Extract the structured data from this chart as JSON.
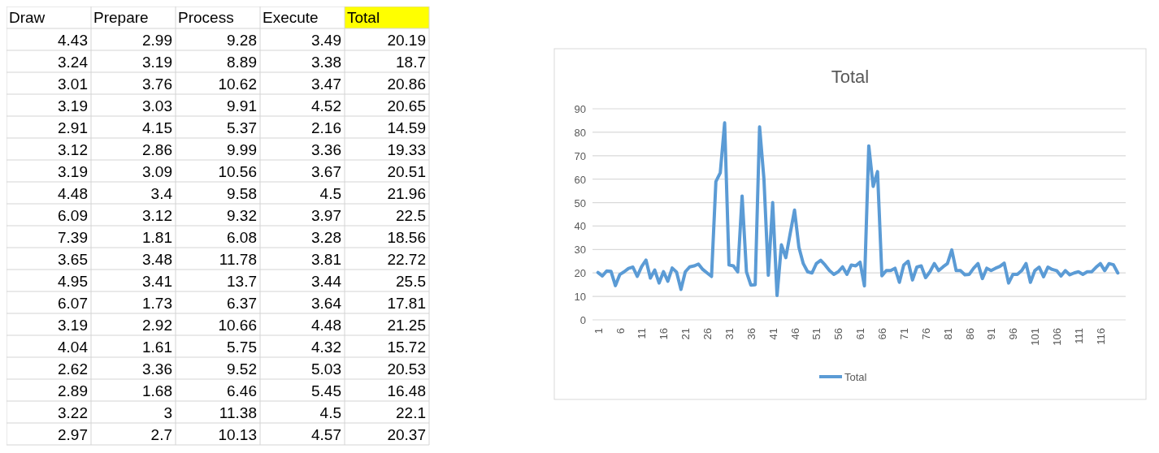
{
  "chart_data": [
    {
      "type": "other",
      "categories": [
        "Draw",
        "Prepare",
        "Process",
        "Execute",
        "Total"
      ],
      "colors": [
        null,
        null,
        null,
        null,
        "#ffff00"
      ],
      "cell_labels": [
        [
          "4.43",
          "2.99",
          "9.28",
          "3.49",
          "20.19"
        ],
        [
          "3.24",
          "3.19",
          "8.89",
          "3.38",
          "18.7"
        ],
        [
          "3.01",
          "3.76",
          "10.62",
          "3.47",
          "20.86"
        ],
        [
          "3.19",
          "3.03",
          "9.91",
          "4.52",
          "20.65"
        ],
        [
          "2.91",
          "4.15",
          "5.37",
          "2.16",
          "14.59"
        ],
        [
          "3.12",
          "2.86",
          "9.99",
          "3.36",
          "19.33"
        ],
        [
          "3.19",
          "3.09",
          "10.56",
          "3.67",
          "20.51"
        ],
        [
          "4.48",
          "3.4",
          "9.58",
          "4.5",
          "21.96"
        ],
        [
          "6.09",
          "3.12",
          "9.32",
          "3.97",
          "22.5"
        ],
        [
          "7.39",
          "1.81",
          "6.08",
          "3.28",
          "18.56"
        ],
        [
          "3.65",
          "3.48",
          "11.78",
          "3.81",
          "22.72"
        ],
        [
          "4.95",
          "3.41",
          "13.7",
          "3.44",
          "25.5"
        ],
        [
          "6.07",
          "1.73",
          "6.37",
          "3.64",
          "17.81"
        ],
        [
          "3.19",
          "2.92",
          "10.66",
          "4.48",
          "21.25"
        ],
        [
          "4.04",
          "1.61",
          "5.75",
          "4.32",
          "15.72"
        ],
        [
          "2.62",
          "3.36",
          "9.52",
          "5.03",
          "20.53"
        ],
        [
          "2.89",
          "1.68",
          "6.46",
          "5.45",
          "16.48"
        ],
        [
          "3.22",
          "3",
          "11.38",
          "4.5",
          "22.1"
        ],
        [
          "2.97",
          "2.7",
          "10.13",
          "4.57",
          "20.37"
        ]
      ]
    },
    {
      "type": "line",
      "title": "Total",
      "categories": [
        "1",
        null,
        null,
        null,
        null,
        "6",
        null,
        null,
        null,
        null,
        "11",
        null,
        null,
        null,
        null,
        "16",
        null,
        null,
        null,
        null,
        "21",
        null,
        null,
        null,
        null,
        "26",
        null,
        null,
        null,
        null,
        "31",
        null,
        null,
        null,
        null,
        "36",
        null,
        null,
        null,
        null,
        "41",
        null,
        null,
        null,
        null,
        "46",
        null,
        null,
        null,
        null,
        "51",
        null,
        null,
        null,
        null,
        "56",
        null,
        null,
        null,
        null,
        "61",
        null,
        null,
        null,
        null,
        "66",
        null,
        null,
        null,
        null,
        "71",
        null,
        null,
        null,
        null,
        "76",
        null,
        null,
        null,
        null,
        "81",
        null,
        null,
        null,
        null,
        "86",
        null,
        null,
        null,
        null,
        "91",
        null,
        null,
        null,
        null,
        "96",
        null,
        null,
        null,
        null,
        "101",
        null,
        null,
        null,
        null,
        "106",
        null,
        null,
        null,
        null,
        "111",
        null,
        null,
        null,
        null,
        "116",
        null,
        null,
        null,
        null
      ],
      "series": [
        {
          "name": "Total",
          "color": "#5b9bd5",
          "values": [
            20.19,
            18.7,
            20.86,
            20.65,
            14.59,
            19.33,
            20.51,
            21.96,
            22.5,
            18.56,
            22.72,
            25.5,
            17.81,
            21.25,
            15.72,
            20.53,
            16.48,
            22.1,
            20.37,
            13,
            20.5,
            22.6,
            23,
            23.8,
            21.5,
            20,
            18.5,
            59,
            62.7,
            84,
            23.4,
            23,
            20.5,
            52.8,
            20.5,
            14.8,
            15,
            82.3,
            60,
            19,
            50,
            10.4,
            32,
            26.5,
            36.7,
            46.8,
            31,
            24,
            20.5,
            20,
            24,
            25.4,
            23.4,
            21,
            19.4,
            20.5,
            22.6,
            19.4,
            23.4,
            23,
            24.6,
            14.5,
            74.2,
            56.9,
            63.2,
            18.8,
            21,
            21,
            22,
            16,
            23.4,
            25,
            17,
            22.5,
            23,
            18,
            20.5,
            24,
            21,
            22.6,
            24,
            29.8,
            21,
            21,
            19.2,
            19.4,
            22,
            24,
            17.6,
            22,
            21,
            22,
            22.8,
            24.2,
            15.7,
            19.4,
            19.4,
            21,
            24,
            16,
            21,
            22.5,
            18.4,
            22.5,
            21.5,
            21,
            18.7,
            21,
            19.2,
            20,
            20.5,
            19.4,
            20.5,
            20.5,
            22.4,
            24,
            21,
            24,
            23.5,
            20
          ]
        }
      ],
      "ylim": [
        0,
        90
      ],
      "yticks": [
        0,
        10,
        20,
        30,
        40,
        50,
        60,
        70,
        80,
        90
      ],
      "grid": "y",
      "legend": "bottom"
    }
  ]
}
